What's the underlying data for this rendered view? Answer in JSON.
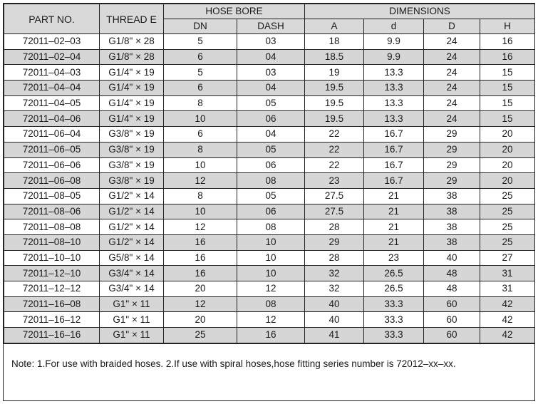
{
  "headers": {
    "part_no": "PART NO.",
    "thread": "THREAD E",
    "hose_bore": "HOSE BORE",
    "dimensions": "DIMENSIONS",
    "dn": "DN",
    "dash": "DASH",
    "a": "A",
    "d_small": "d",
    "d_big": "D",
    "h": "H"
  },
  "rows": [
    [
      "72011–02–03",
      "G1/8\" × 28",
      "5",
      "03",
      "18",
      "9.9",
      "24",
      "16"
    ],
    [
      "72011–02–04",
      "G1/8\" × 28",
      "6",
      "04",
      "18.5",
      "9.9",
      "24",
      "16"
    ],
    [
      "72011–04–03",
      "G1/4\" × 19",
      "5",
      "03",
      "19",
      "13.3",
      "24",
      "15"
    ],
    [
      "72011–04–04",
      "G1/4\" × 19",
      "6",
      "04",
      "19.5",
      "13.3",
      "24",
      "15"
    ],
    [
      "72011–04–05",
      "G1/4\" × 19",
      "8",
      "05",
      "19.5",
      "13.3",
      "24",
      "15"
    ],
    [
      "72011–04–06",
      "G1/4\" × 19",
      "10",
      "06",
      "19.5",
      "13.3",
      "24",
      "15"
    ],
    [
      "72011–06–04",
      "G3/8\" × 19",
      "6",
      "04",
      "22",
      "16.7",
      "29",
      "20"
    ],
    [
      "72011–06–05",
      "G3/8\" × 19",
      "8",
      "05",
      "22",
      "16.7",
      "29",
      "20"
    ],
    [
      "72011–06–06",
      "G3/8\" × 19",
      "10",
      "06",
      "22",
      "16.7",
      "29",
      "20"
    ],
    [
      "72011–06–08",
      "G3/8\" × 19",
      "12",
      "08",
      "23",
      "16.7",
      "29",
      "20"
    ],
    [
      "72011–08–05",
      "G1/2\" × 14",
      "8",
      "05",
      "27.5",
      "21",
      "38",
      "25"
    ],
    [
      "72011–08–06",
      "G1/2\" × 14",
      "10",
      "06",
      "27.5",
      "21",
      "38",
      "25"
    ],
    [
      "72011–08–08",
      "G1/2\" × 14",
      "12",
      "08",
      "28",
      "21",
      "38",
      "25"
    ],
    [
      "72011–08–10",
      "G1/2\" × 14",
      "16",
      "10",
      "29",
      "21",
      "38",
      "25"
    ],
    [
      "72011–10–10",
      "G5/8\" × 14",
      "16",
      "10",
      "28",
      "23",
      "40",
      "27"
    ],
    [
      "72011–12–10",
      "G3/4\" × 14",
      "16",
      "10",
      "32",
      "26.5",
      "48",
      "31"
    ],
    [
      "72011–12–12",
      "G3/4\" × 14",
      "20",
      "12",
      "32",
      "26.5",
      "48",
      "31"
    ],
    [
      "72011–16–08",
      "G1\" × 11",
      "12",
      "08",
      "40",
      "33.3",
      "60",
      "42"
    ],
    [
      "72011–16–12",
      "G1\" × 11",
      "20",
      "12",
      "40",
      "33.3",
      "60",
      "42"
    ],
    [
      "72011–16–16",
      "G1\" × 11",
      "25",
      "16",
      "41",
      "33.3",
      "60",
      "42"
    ]
  ],
  "note": "Note: 1.For use with braided hoses.   2.If use with spiral hoses,hose fitting series number is 72012–xx–xx."
}
